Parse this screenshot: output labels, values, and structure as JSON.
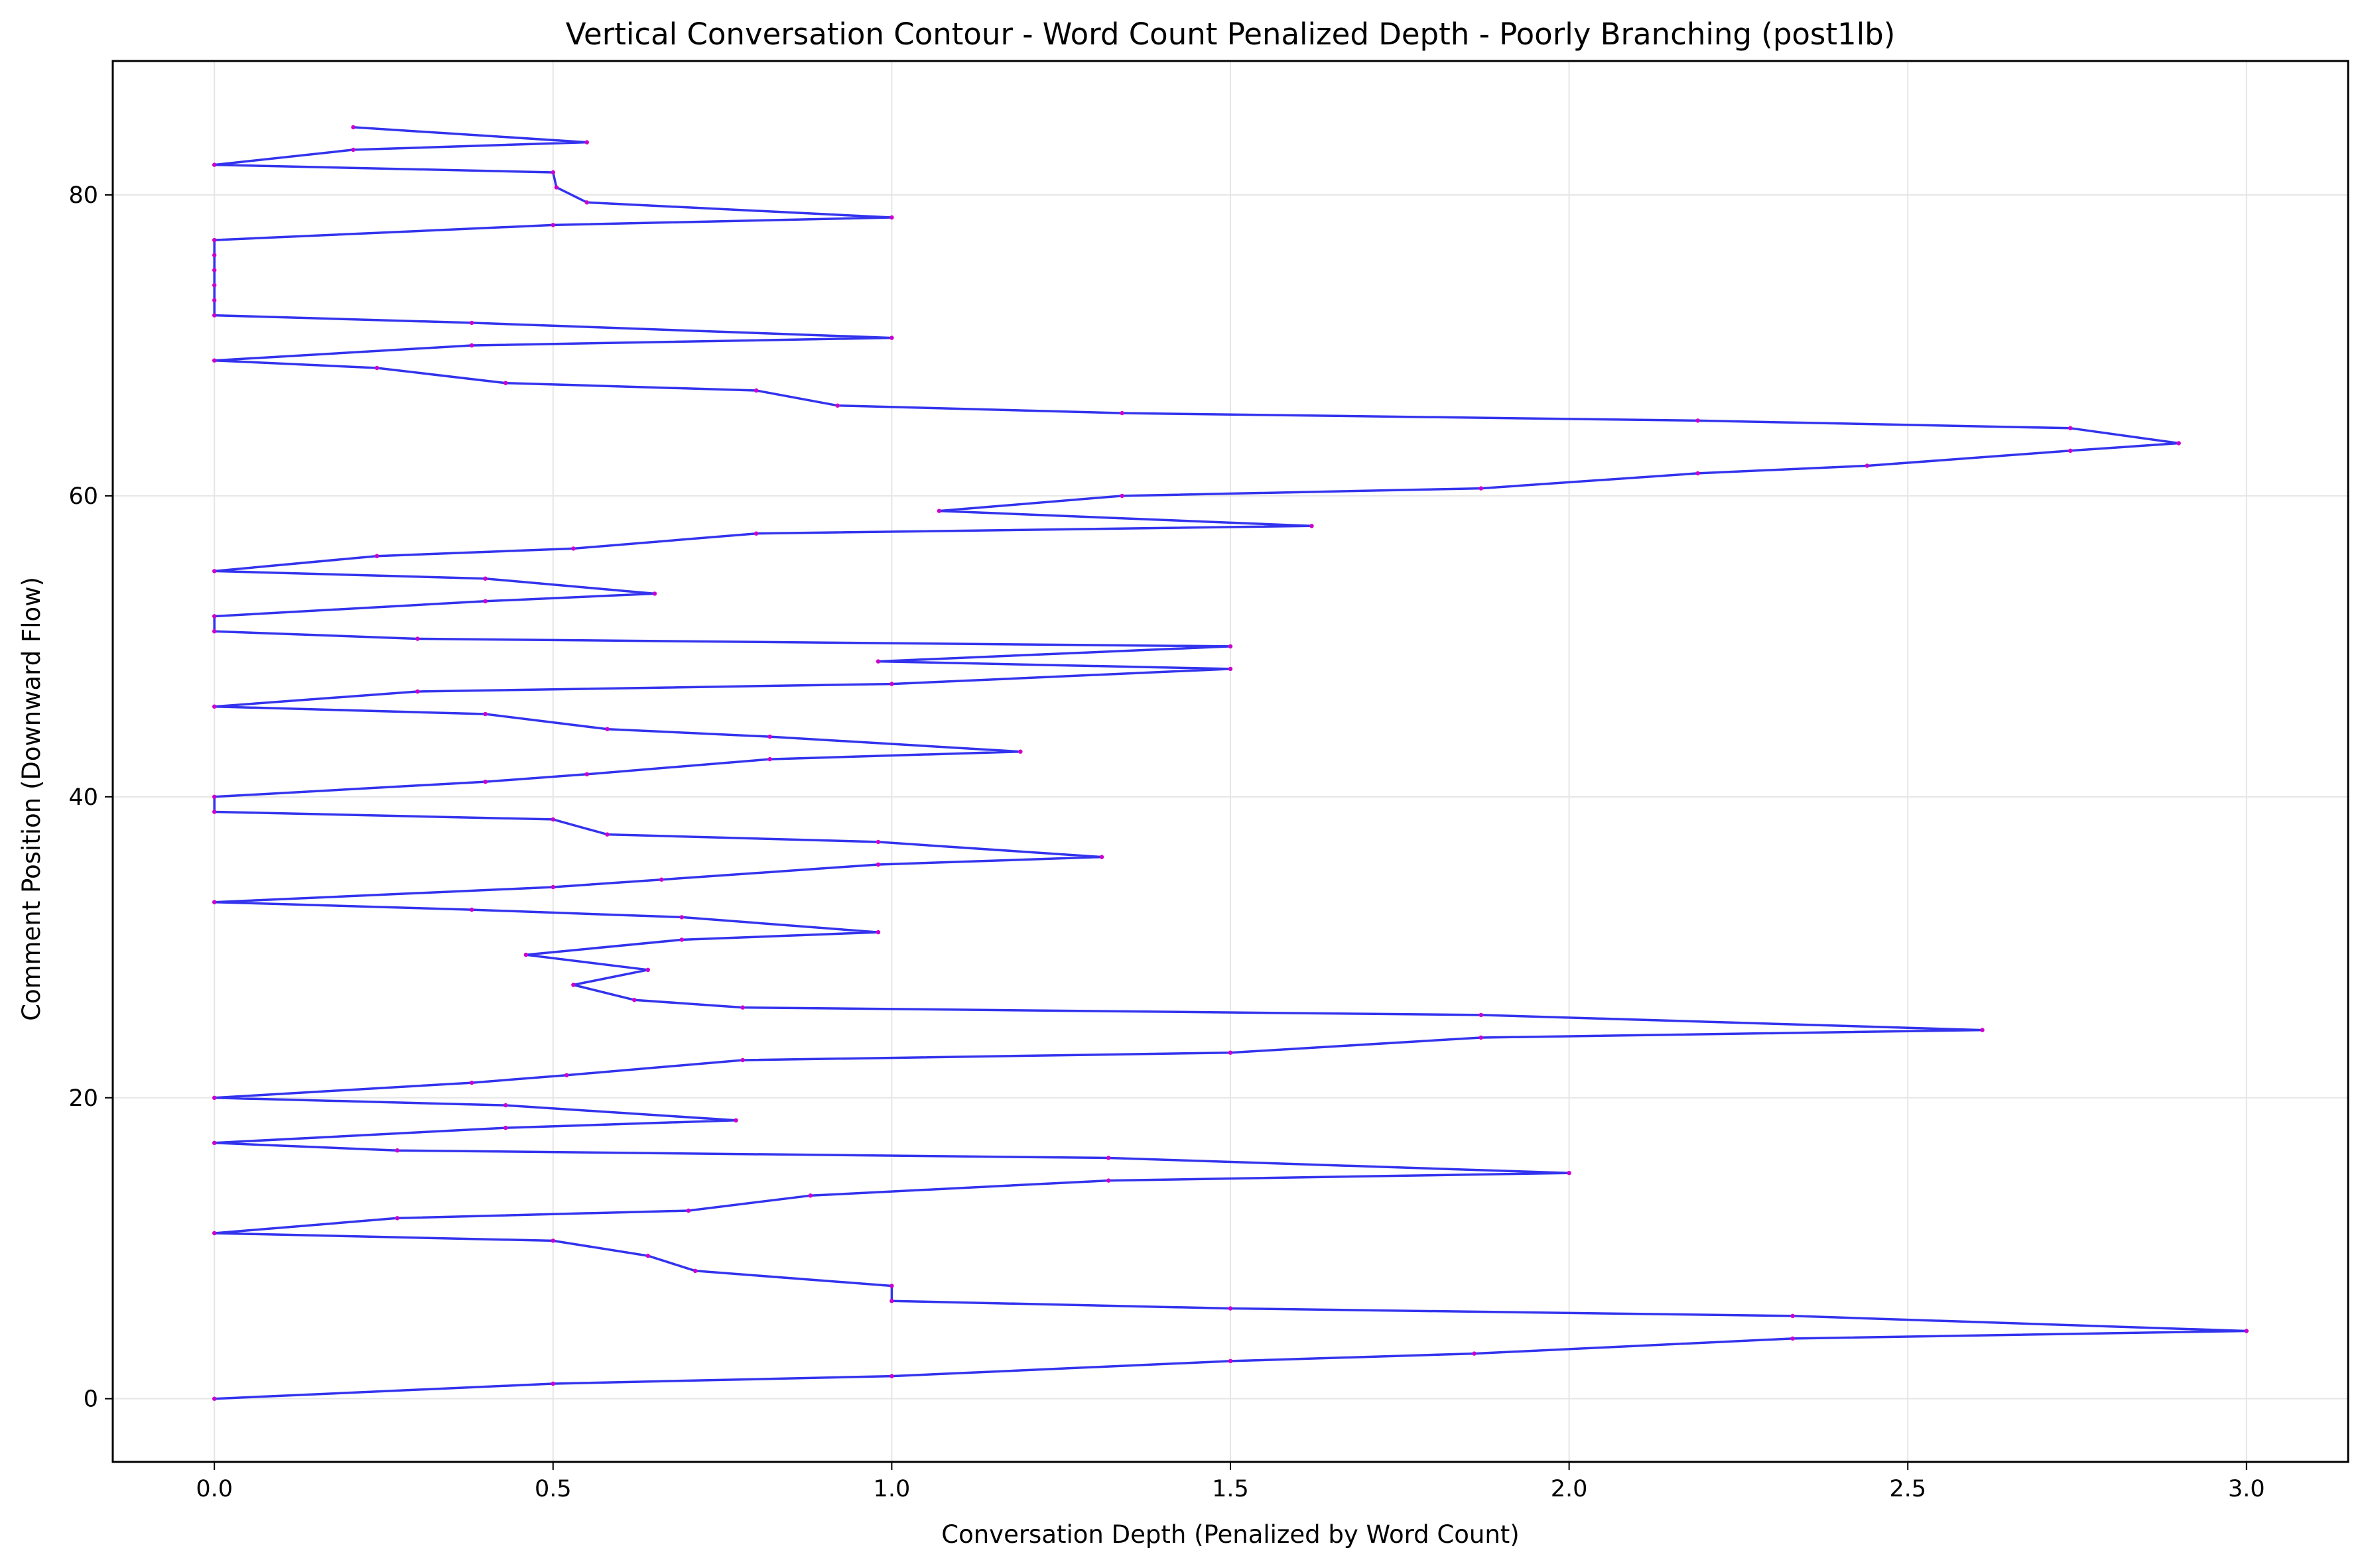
{
  "chart_data": {
    "type": "line",
    "title": "Vertical Conversation Contour - Word Count Penalized Depth - Poorly Branching (post1lb)",
    "xlabel": "Conversation Depth (Penalized by Word Count)",
    "ylabel": "Comment Position (Downward Flow)",
    "xlim": [
      -0.15,
      3.15
    ],
    "ylim": [
      -4.2,
      88.9
    ],
    "xticks": [
      0.0,
      0.5,
      1.0,
      1.5,
      2.0,
      2.5,
      3.0
    ],
    "xtick_labels": [
      "0.0",
      "0.5",
      "1.0",
      "1.5",
      "2.0",
      "2.5",
      "3.0"
    ],
    "yticks": [
      0,
      20,
      40,
      60,
      80
    ],
    "ytick_labels": [
      "0",
      "20",
      "40",
      "60",
      "80"
    ],
    "grid": true,
    "colors": {
      "line": "#3333ee",
      "marker": "#cc00cc",
      "grid": "#e6e6e6"
    },
    "series": [
      {
        "points": [
          [
            0.0,
            0
          ],
          [
            0.5,
            1
          ],
          [
            1.0,
            1.5
          ],
          [
            1.5,
            2.5
          ],
          [
            1.86,
            3
          ],
          [
            2.33,
            4
          ],
          [
            3.0,
            4.5
          ],
          [
            2.33,
            5.5
          ],
          [
            1.5,
            6
          ],
          [
            1.0,
            6.5
          ],
          [
            1.0,
            7.5
          ],
          [
            0.71,
            8.5
          ],
          [
            0.64,
            9.5
          ],
          [
            0.5,
            10.5
          ],
          [
            0.0,
            11
          ],
          [
            0.27,
            12
          ],
          [
            0.7,
            12.5
          ],
          [
            0.88,
            13.5
          ],
          [
            1.32,
            14.5
          ],
          [
            2.0,
            15
          ],
          [
            1.32,
            16
          ],
          [
            0.27,
            16.5
          ],
          [
            0.0,
            17
          ],
          [
            0.43,
            18
          ],
          [
            0.77,
            18.5
          ],
          [
            0.43,
            19.5
          ],
          [
            0.0,
            20
          ],
          [
            0.38,
            21
          ],
          [
            0.52,
            21.5
          ],
          [
            0.78,
            22.5
          ],
          [
            1.5,
            23
          ],
          [
            1.87,
            24
          ],
          [
            2.61,
            24.5
          ],
          [
            1.87,
            25.5
          ],
          [
            0.78,
            26
          ],
          [
            0.62,
            26.5
          ],
          [
            0.53,
            27.5
          ],
          [
            0.64,
            28.5
          ],
          [
            0.46,
            29.5
          ],
          [
            0.69,
            30.5
          ],
          [
            0.98,
            31
          ],
          [
            0.69,
            32
          ],
          [
            0.38,
            32.5
          ],
          [
            0.0,
            33
          ],
          [
            0.5,
            34
          ],
          [
            0.66,
            34.5
          ],
          [
            0.98,
            35.5
          ],
          [
            1.31,
            36
          ],
          [
            0.98,
            37
          ],
          [
            0.58,
            37.5
          ],
          [
            0.5,
            38.5
          ],
          [
            0.0,
            39
          ],
          [
            0.0,
            40
          ],
          [
            0.4,
            41
          ],
          [
            0.55,
            41.5
          ],
          [
            0.82,
            42.5
          ],
          [
            1.19,
            43
          ],
          [
            0.82,
            44
          ],
          [
            0.58,
            44.5
          ],
          [
            0.4,
            45.5
          ],
          [
            0.0,
            46
          ],
          [
            0.3,
            47
          ],
          [
            1.0,
            47.5
          ],
          [
            1.5,
            48.5
          ],
          [
            0.98,
            49
          ],
          [
            1.5,
            50
          ],
          [
            0.3,
            50.5
          ],
          [
            0.0,
            51
          ],
          [
            0.0,
            52
          ],
          [
            0.4,
            53
          ],
          [
            0.65,
            53.5
          ],
          [
            0.4,
            54.5
          ],
          [
            0.0,
            55
          ],
          [
            0.24,
            56
          ],
          [
            0.53,
            56.5
          ],
          [
            0.8,
            57.5
          ],
          [
            1.62,
            58
          ],
          [
            1.07,
            59
          ],
          [
            1.34,
            60
          ],
          [
            1.87,
            60.5
          ],
          [
            2.19,
            61.5
          ],
          [
            2.44,
            62
          ],
          [
            2.74,
            63
          ],
          [
            2.9,
            63.5
          ],
          [
            2.74,
            64.5
          ],
          [
            2.19,
            65
          ],
          [
            1.34,
            65.5
          ],
          [
            0.92,
            66
          ],
          [
            0.8,
            67
          ],
          [
            0.43,
            67.5
          ],
          [
            0.24,
            68.5
          ],
          [
            0.0,
            69
          ],
          [
            0.38,
            70
          ],
          [
            1.0,
            70.5
          ],
          [
            0.38,
            71.5
          ],
          [
            0.0,
            72
          ],
          [
            0.0,
            73
          ],
          [
            0.0,
            74
          ],
          [
            0.0,
            75
          ],
          [
            0.0,
            76
          ],
          [
            0.0,
            77
          ],
          [
            0.5,
            78
          ],
          [
            1.0,
            78.5
          ],
          [
            0.55,
            79.5
          ],
          [
            0.505,
            80.5
          ],
          [
            0.5,
            81.5
          ],
          [
            0.0,
            82
          ],
          [
            0.205,
            83
          ],
          [
            0.55,
            83.5
          ],
          [
            0.205,
            84.5
          ]
        ]
      }
    ]
  }
}
